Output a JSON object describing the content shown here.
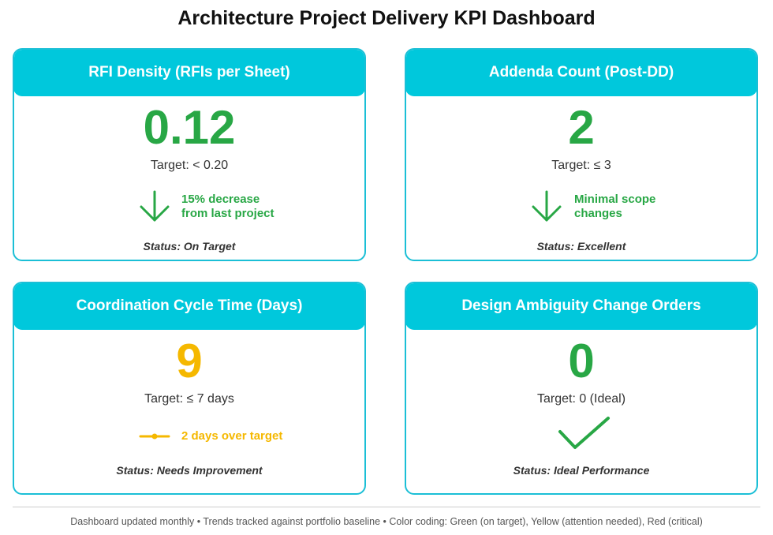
{
  "title": "Architecture Project Delivery KPI Dashboard",
  "colors": {
    "accent": "#00c8dc",
    "good": "#28a745",
    "warning": "#f5b800",
    "critical": "#dc3545"
  },
  "cards": [
    {
      "header": "RFI Density (RFIs per Sheet)",
      "value": "0.12",
      "target": "Target: < 0.20",
      "trend_icon": "arrow-down-icon",
      "trend_line1": "15% decrease",
      "trend_line2": "from last project",
      "status": "Status: On Target",
      "color": "#28a745"
    },
    {
      "header": "Addenda Count (Post-DD)",
      "value": "2",
      "target": "Target: ≤ 3",
      "trend_icon": "arrow-down-icon",
      "trend_line1": "Minimal scope",
      "trend_line2": "changes",
      "status": "Status: Excellent",
      "color": "#28a745"
    },
    {
      "header": "Coordination Cycle Time (Days)",
      "value": "9",
      "target": "Target: ≤ 7 days",
      "trend_icon": "flat-line-icon",
      "trend_line1": "2 days over target",
      "trend_line2": "",
      "status": "Status: Needs Improvement",
      "color": "#f5b800"
    },
    {
      "header": "Design Ambiguity Change Orders",
      "value": "0",
      "target": "Target: 0 (Ideal)",
      "trend_icon": "checkmark-icon",
      "trend_line1": "",
      "trend_line2": "",
      "status": "Status: Ideal Performance",
      "color": "#28a745"
    }
  ],
  "footer": "Dashboard updated monthly • Trends tracked against portfolio baseline • Color coding: Green (on target), Yellow (attention needed), Red (critical)"
}
